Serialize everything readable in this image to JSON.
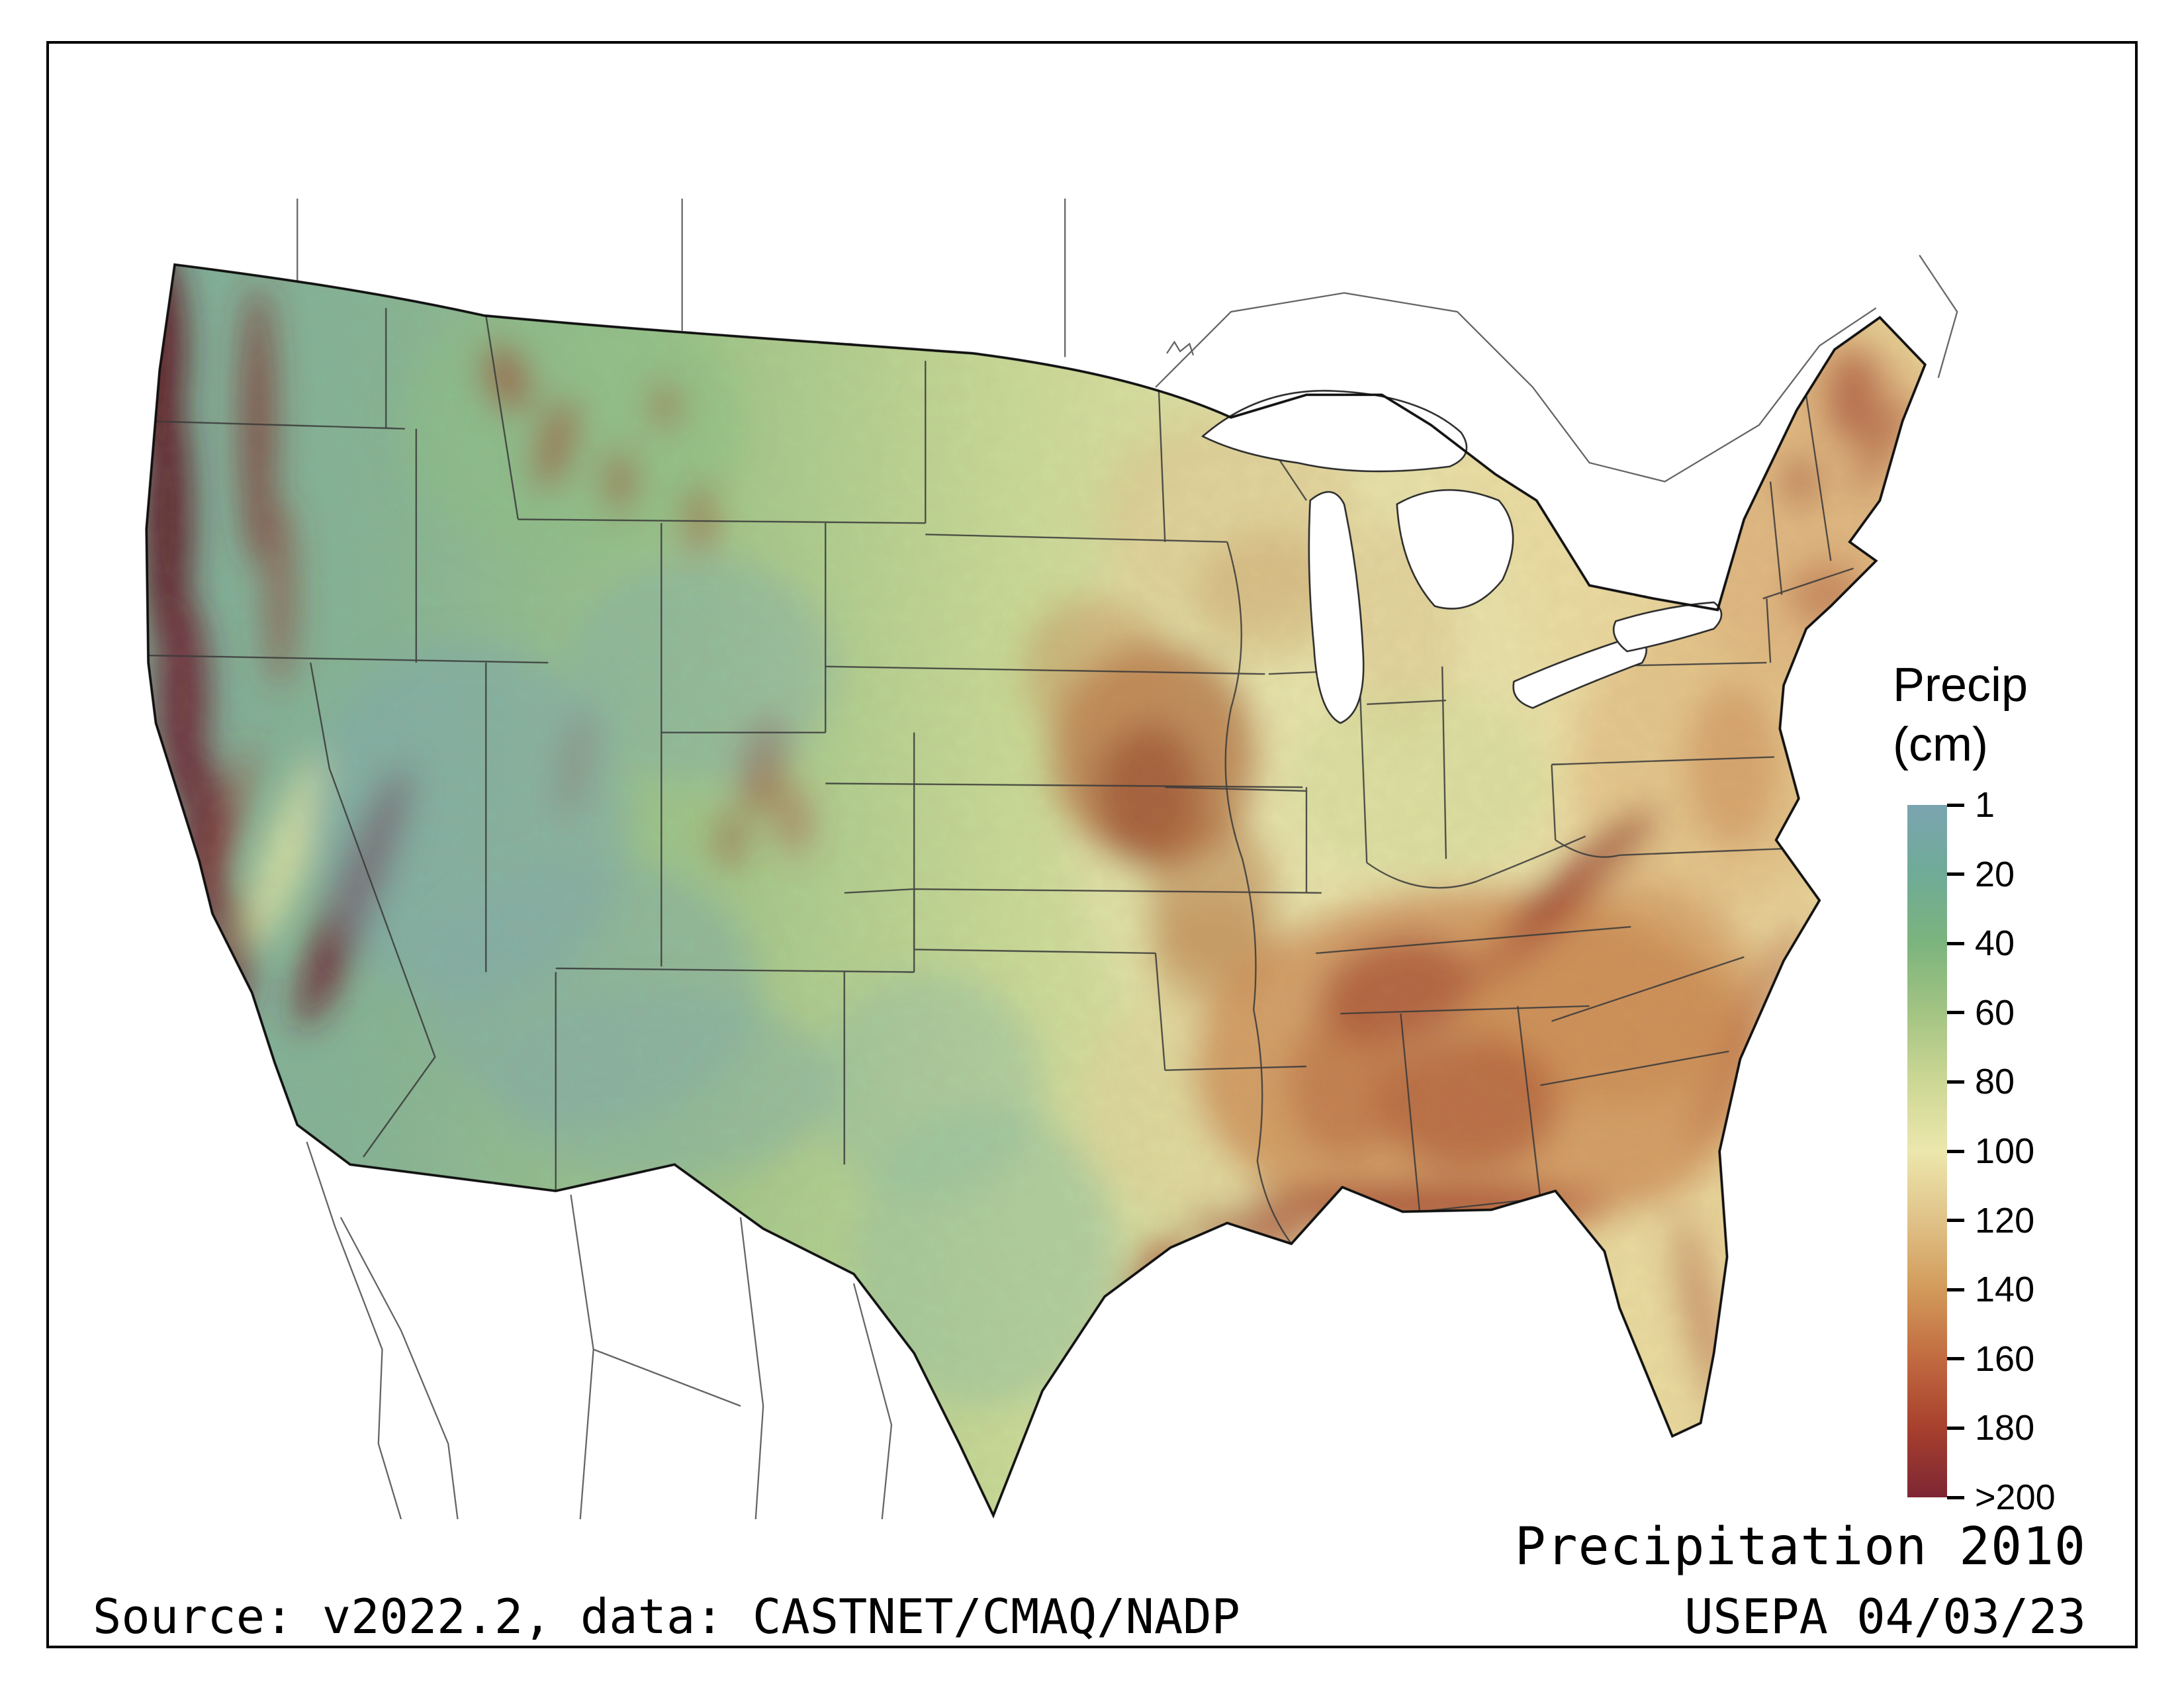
{
  "figure": {
    "title": "Precipitation 2010",
    "credit": "USEPA 04/03/23",
    "source": "Source: v2022.2, data: CASTNET/CMAQ/NADP"
  },
  "legend": {
    "title_line1": "Precip",
    "title_line2": "(cm)",
    "ticks": [
      "1",
      "20",
      "40",
      "60",
      "80",
      "100",
      "120",
      "140",
      "160",
      "180",
      ">200"
    ],
    "colors": [
      "#7ba4b0",
      "#6fab97",
      "#7cb47d",
      "#a3c483",
      "#cdd795",
      "#ece7ad",
      "#e0c288",
      "#d29a5a",
      "#c16a40",
      "#a7402d",
      "#7d2634"
    ]
  },
  "map": {
    "region": "Contiguous United States",
    "variable": "Precipitation (cm), gridded raster",
    "year": "2010"
  }
}
